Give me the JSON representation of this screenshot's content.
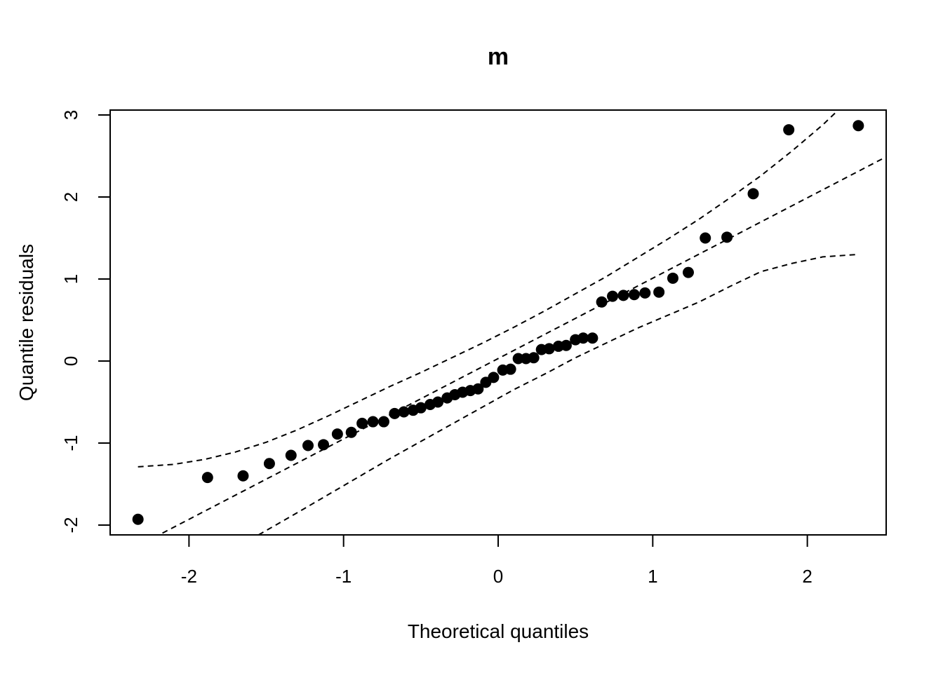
{
  "chart_data": {
    "type": "scatter",
    "title": "m",
    "xlabel": "Theoretical quantiles",
    "ylabel": "Quantile residuals",
    "xlim": [
      -2.51,
      2.51
    ],
    "ylim": [
      -2.12,
      3.06
    ],
    "x_ticks": [
      -2,
      -1,
      0,
      1,
      2
    ],
    "x_tick_labels": [
      "-2",
      "-1",
      "0",
      "1",
      "2"
    ],
    "y_ticks": [
      -2,
      -1,
      0,
      1,
      2,
      3
    ],
    "y_tick_labels": [
      "-2",
      "-1",
      "0",
      "1",
      "2",
      "3"
    ],
    "grid": false,
    "legend": "none",
    "points": {
      "x": [
        -2.33,
        -1.88,
        -1.65,
        -1.48,
        -1.34,
        -1.23,
        -1.13,
        -1.04,
        -0.95,
        -0.88,
        -0.81,
        -0.74,
        -0.67,
        -0.61,
        -0.55,
        -0.5,
        -0.44,
        -0.39,
        -0.33,
        -0.28,
        -0.23,
        -0.18,
        -0.13,
        -0.08,
        -0.03,
        0.03,
        0.08,
        0.13,
        0.18,
        0.23,
        0.28,
        0.33,
        0.39,
        0.44,
        0.5,
        0.55,
        0.61,
        0.67,
        0.74,
        0.81,
        0.88,
        0.95,
        1.04,
        1.13,
        1.23,
        1.34,
        1.48,
        1.65,
        1.88,
        2.33
      ],
      "y": [
        -1.93,
        -1.42,
        -1.4,
        -1.25,
        -1.15,
        -1.03,
        -1.02,
        -0.89,
        -0.87,
        -0.76,
        -0.74,
        -0.74,
        -0.64,
        -0.62,
        -0.6,
        -0.57,
        -0.53,
        -0.5,
        -0.45,
        -0.41,
        -0.38,
        -0.36,
        -0.34,
        -0.26,
        -0.2,
        -0.11,
        -0.1,
        0.03,
        0.03,
        0.04,
        0.14,
        0.15,
        0.18,
        0.19,
        0.26,
        0.28,
        0.28,
        0.72,
        0.79,
        0.8,
        0.81,
        0.83,
        0.84,
        1.01,
        1.08,
        1.5,
        1.51,
        2.04,
        2.82,
        2.87
      ]
    },
    "reference_line": {
      "style": "dashed",
      "intercept": 0.03,
      "slope": 0.98
    },
    "confidence_band": {
      "style": "dashed",
      "upper": {
        "x": [
          -2.33,
          -2.1,
          -1.9,
          -1.7,
          -1.5,
          -1.3,
          -1.1,
          -0.9,
          -0.7,
          -0.5,
          -0.3,
          -0.1,
          0.1,
          0.3,
          0.5,
          0.7,
          0.9,
          1.1,
          1.3,
          1.5,
          1.7,
          1.9,
          2.1,
          2.2
        ],
        "y": [
          -1.29,
          -1.26,
          -1.2,
          -1.11,
          -0.99,
          -0.84,
          -0.67,
          -0.49,
          -0.31,
          -0.14,
          0.04,
          0.22,
          0.41,
          0.61,
          0.82,
          1.03,
          1.26,
          1.49,
          1.73,
          1.99,
          2.26,
          2.56,
          2.88,
          3.06
        ]
      },
      "lower": {
        "x": [
          -1.55,
          -1.3,
          -1.1,
          -0.9,
          -0.7,
          -0.5,
          -0.3,
          -0.1,
          0.1,
          0.3,
          0.5,
          0.7,
          0.9,
          1.1,
          1.3,
          1.5,
          1.7,
          1.9,
          2.1,
          2.33
        ],
        "y": [
          -2.12,
          -1.85,
          -1.63,
          -1.41,
          -1.19,
          -0.98,
          -0.77,
          -0.56,
          -0.35,
          -0.16,
          0.04,
          0.22,
          0.4,
          0.56,
          0.72,
          0.91,
          1.09,
          1.19,
          1.27,
          1.3
        ]
      }
    }
  }
}
